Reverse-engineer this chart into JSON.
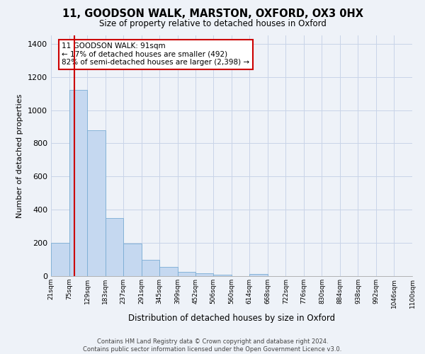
{
  "title": "11, GOODSON WALK, MARSTON, OXFORD, OX3 0HX",
  "subtitle": "Size of property relative to detached houses in Oxford",
  "xlabel": "Distribution of detached houses by size in Oxford",
  "ylabel": "Number of detached properties",
  "footer_line1": "Contains HM Land Registry data © Crown copyright and database right 2024.",
  "footer_line2": "Contains public sector information licensed under the Open Government Licence v3.0.",
  "bin_edges": [
    21,
    75,
    129,
    183,
    237,
    291,
    345,
    399,
    452,
    506,
    560,
    614,
    668,
    722,
    776,
    830,
    884,
    938,
    992,
    1046,
    1100
  ],
  "bin_labels": [
    "21sqm",
    "75sqm",
    "129sqm",
    "183sqm",
    "237sqm",
    "291sqm",
    "345sqm",
    "399sqm",
    "452sqm",
    "506sqm",
    "560sqm",
    "614sqm",
    "668sqm",
    "722sqm",
    "776sqm",
    "830sqm",
    "884sqm",
    "938sqm",
    "992sqm",
    "1046sqm",
    "1100sqm"
  ],
  "bar_heights": [
    200,
    1120,
    880,
    350,
    195,
    100,
    55,
    25,
    15,
    10,
    0,
    12,
    0,
    0,
    0,
    0,
    0,
    0,
    0,
    0
  ],
  "bar_color": "#c5d8f0",
  "bar_edgecolor": "#7aadd4",
  "property_line_x": 91,
  "annotation_title": "11 GOODSON WALK: 91sqm",
  "annotation_line2": "← 17% of detached houses are smaller (492)",
  "annotation_line3": "82% of semi-detached houses are larger (2,398) →",
  "annotation_box_facecolor": "#ffffff",
  "annotation_box_edgecolor": "#cc0000",
  "vline_color": "#cc0000",
  "ylim": [
    0,
    1450
  ],
  "yticks": [
    0,
    200,
    400,
    600,
    800,
    1000,
    1200,
    1400
  ],
  "background_color": "#eef2f8",
  "plot_bg_color": "#eef2f8",
  "grid_color": "#c8d4e8"
}
